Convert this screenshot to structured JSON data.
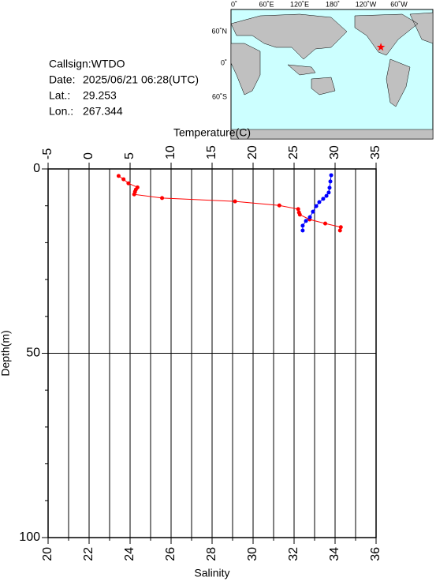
{
  "info": {
    "callsign": "Callsign:WTDO",
    "date_label": "Date:",
    "date": "2025/06/21 06:28(UTC)",
    "lat_label": "Lat.:",
    "lat": 29.253,
    "lon_label": "Lon.:",
    "lon": 267.344
  },
  "map": {
    "lon_labels": [
      "0˚",
      "60˚E",
      "120˚E",
      "180˚",
      "120˚W",
      "60˚W"
    ],
    "lat_labels": [
      "60˚N",
      "0˚",
      "60˚S"
    ]
  },
  "chart_data": {
    "type": "scatter",
    "x2_label": "Temperature(C)",
    "x_label": "Salinity",
    "y_label": "Depth(m)",
    "xlim": [
      20,
      36
    ],
    "xticks": [
      20,
      22,
      24,
      26,
      28,
      30,
      32,
      34,
      36
    ],
    "xminor": [
      21,
      23,
      25,
      27,
      29,
      31,
      33,
      35
    ],
    "x2lim": [
      -5,
      35
    ],
    "x2ticks": [
      -5,
      0,
      5,
      10,
      15,
      20,
      25,
      30,
      35
    ],
    "ylim": [
      0,
      100
    ],
    "yticks": [
      0,
      50,
      100
    ],
    "yminor": [
      10,
      20,
      30,
      40,
      60,
      70,
      80,
      90
    ],
    "y_inverted": true,
    "grid": true,
    "series": [
      {
        "color": "#ff0000",
        "axis": "x2",
        "x": [
          3.6,
          4.2,
          4.8,
          5.9,
          5.7,
          5.6,
          5.5,
          8.9,
          17.8,
          23.2,
          25.5,
          25.6,
          25.7,
          26.9,
          28.8,
          30.7,
          30.6
        ],
        "values": [
          1.9,
          2.8,
          3.9,
          5.0,
          5.6,
          6.2,
          6.9,
          7.9,
          8.8,
          9.9,
          10.9,
          11.8,
          12.4,
          13.7,
          14.8,
          15.8,
          16.7
        ]
      },
      {
        "color": "#0000ff",
        "x": [
          33.81,
          33.77,
          33.73,
          33.69,
          33.58,
          33.42,
          33.23,
          33.08,
          32.92,
          32.77,
          32.58,
          32.42,
          32.42
        ],
        "values": [
          1.7,
          3.4,
          5.1,
          6.4,
          7.3,
          8.1,
          9.0,
          10.1,
          11.6,
          13.1,
          14.1,
          15.4,
          16.7
        ]
      }
    ]
  }
}
